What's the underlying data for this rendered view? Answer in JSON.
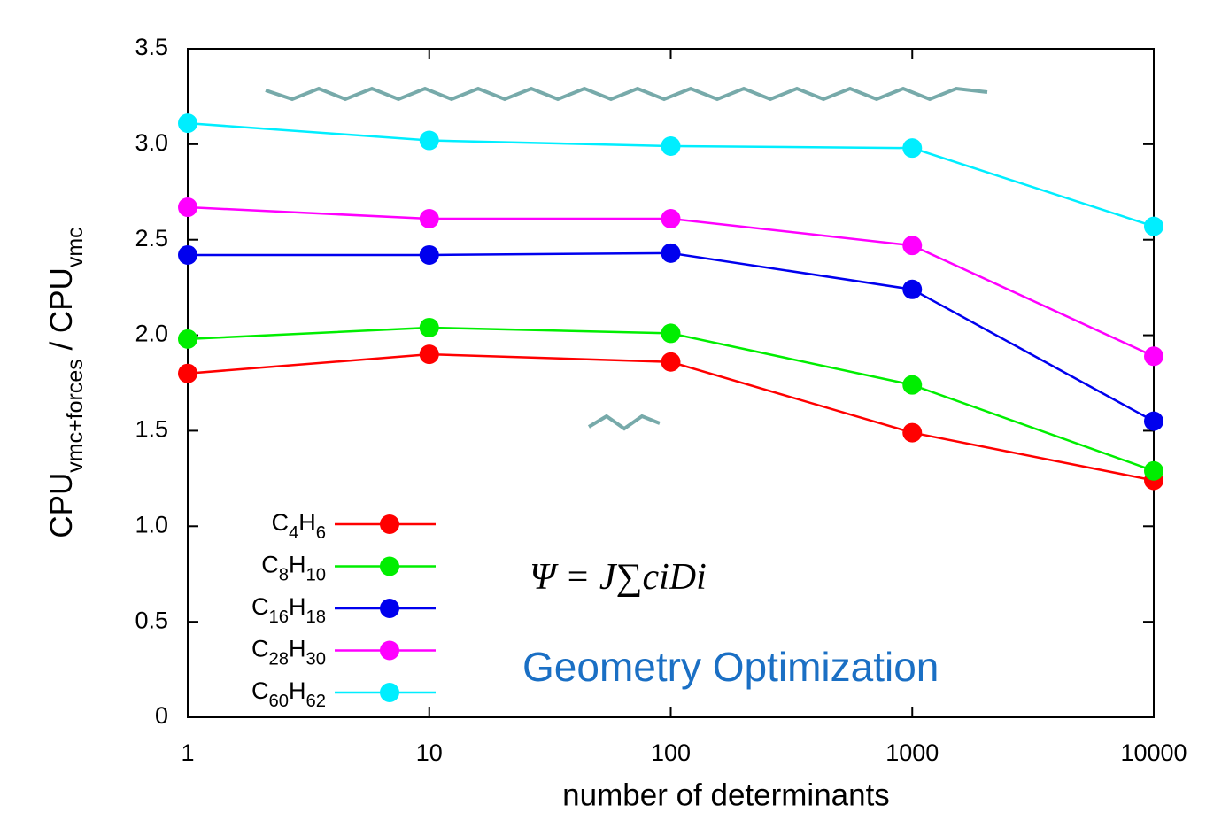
{
  "chart_data": {
    "type": "line",
    "log_x": true,
    "xlabel": "number of determinants",
    "ylabel": [
      "CPU",
      "vmc+forces",
      " / CPU",
      "vmc"
    ],
    "x": [
      1,
      10,
      100,
      1000,
      10000
    ],
    "series": [
      {
        "name": "C4H6",
        "color": "#ff0000",
        "values": [
          1.8,
          1.9,
          1.86,
          1.49,
          1.24
        ]
      },
      {
        "name": "C8H10",
        "color": "#00ee00",
        "values": [
          1.98,
          2.04,
          2.01,
          1.74,
          1.29
        ]
      },
      {
        "name": "C16H18",
        "color": "#0000ee",
        "values": [
          2.42,
          2.42,
          2.43,
          2.24,
          1.55
        ]
      },
      {
        "name": "C28H30",
        "color": "#ff00ff",
        "values": [
          2.67,
          2.61,
          2.61,
          2.47,
          1.89
        ]
      },
      {
        "name": "C60H62",
        "color": "#00eeff",
        "values": [
          3.11,
          3.02,
          2.99,
          2.98,
          2.57
        ]
      }
    ],
    "xlim": [
      1,
      10000
    ],
    "xticks": [
      1,
      10,
      100,
      1000,
      10000
    ],
    "ylim": [
      0,
      3.5
    ],
    "yticks": [
      0,
      0.5,
      {
        "value": 1,
        "label": "1.0"
      },
      1.5,
      {
        "value": 2,
        "label": "2.0"
      },
      2.5,
      {
        "value": 3,
        "label": "3.0"
      },
      3.5
    ],
    "legend": "lower left",
    "annotations": [
      "Ψ = J∑ciDi",
      "Geometry Optimization"
    ]
  }
}
